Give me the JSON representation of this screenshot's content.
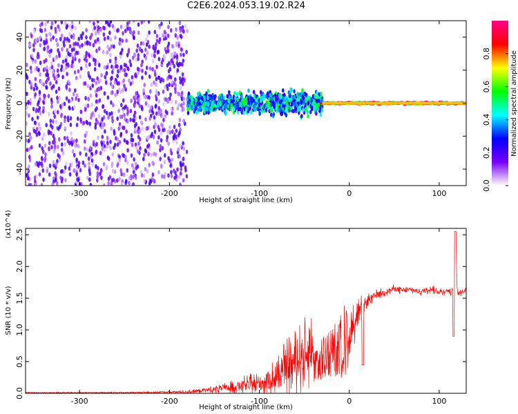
{
  "title": "C2E6.2024.053.19.02.R24",
  "chart_data": [
    {
      "type": "heatmap",
      "xlabel": "Height of straight line (km)",
      "ylabel": "Frequency (Hz)",
      "xlim": [
        -360,
        130
      ],
      "ylim": [
        -50,
        50
      ],
      "xticks": [
        -300,
        -200,
        -100,
        0,
        100
      ],
      "xtick_labels": [
        "-300",
        "-200",
        "-100",
        "0",
        "100"
      ],
      "yticks": [
        -40,
        -20,
        0,
        20,
        40
      ],
      "ytick_labels": [
        "-40",
        "-20",
        "0",
        "20",
        "40"
      ],
      "colorbar": {
        "label": "Normalized spectral amplitude",
        "range": [
          0.0,
          1.0
        ],
        "ticks": [
          0.0,
          0.2,
          0.4,
          0.6,
          0.8
        ],
        "tick_labels": [
          "0.0",
          "0.2",
          "0.4",
          "0.6",
          "0.8"
        ],
        "colors": [
          "#ffffff",
          "#7700ff",
          "#0000ff",
          "#00ffff",
          "#00ff00",
          "#ffff00",
          "#ff0000",
          "#ff0088"
        ]
      },
      "regions": [
        {
          "x": [
            -360,
            -180
          ],
          "freq_spread": 50,
          "amplitude": 0.15
        },
        {
          "x": [
            -180,
            -100
          ],
          "freq_spread": 8,
          "amplitude": 0.45
        },
        {
          "x": [
            -100,
            -30
          ],
          "freq_spread": 10,
          "amplitude": 0.45
        },
        {
          "x": [
            -30,
            130
          ],
          "freq_spread": 1,
          "amplitude": 0.85
        }
      ]
    },
    {
      "type": "line",
      "xlabel": "Height of straight line (km)",
      "ylabel": "SNR (10 * v/v)",
      "yunit": "(x10^4)",
      "xlim": [
        -360,
        130
      ],
      "ylim": [
        0,
        2.6
      ],
      "xticks": [
        -300,
        -200,
        -100,
        0,
        100
      ],
      "xtick_labels": [
        "-300",
        "-200",
        "-100",
        "0",
        "100"
      ],
      "yticks": [
        0,
        0.5,
        1.0,
        1.5,
        2.0,
        2.5
      ],
      "ytick_labels": [
        "0.0",
        "0.5",
        "1.0",
        "1.5",
        "2.0",
        "2.5"
      ],
      "series": [
        {
          "color": "#ff0000",
          "x": [
            -360,
            -300,
            -250,
            -200,
            -180,
            -160,
            -140,
            -120,
            -100,
            -80,
            -70,
            -60,
            -50,
            -40,
            -30,
            -20,
            -10,
            -5,
            0,
            5,
            10,
            15,
            20,
            25,
            30,
            40,
            50,
            60,
            70,
            80,
            90,
            100,
            110,
            115,
            118,
            120,
            125,
            130
          ],
          "values": [
            0.01,
            0.01,
            0.01,
            0.02,
            0.02,
            0.05,
            0.08,
            0.12,
            0.15,
            0.25,
            0.4,
            0.5,
            0.6,
            0.7,
            0.8,
            0.95,
            1.1,
            1.4,
            0.9,
            1.1,
            1.2,
            1.35,
            1.45,
            1.5,
            1.55,
            1.6,
            1.65,
            1.62,
            1.63,
            1.6,
            1.65,
            1.6,
            1.62,
            1.6,
            2.6,
            1.6,
            1.6,
            1.65
          ],
          "spike_amplitude": [
            0.01,
            0.01,
            0.01,
            0.02,
            0.03,
            0.05,
            0.08,
            0.12,
            0.18,
            0.3,
            0.4,
            0.45,
            0.5,
            0.5,
            0.55,
            0.55,
            0.5,
            0.45,
            0.35,
            0.3,
            0.25,
            0.2,
            0.15,
            0.1,
            0.08,
            0.06,
            0.06,
            0.06,
            0.06,
            0.06,
            0.06,
            0.06,
            0.06,
            0.06,
            0.06,
            0.06,
            0.06,
            0.06
          ]
        }
      ]
    }
  ]
}
